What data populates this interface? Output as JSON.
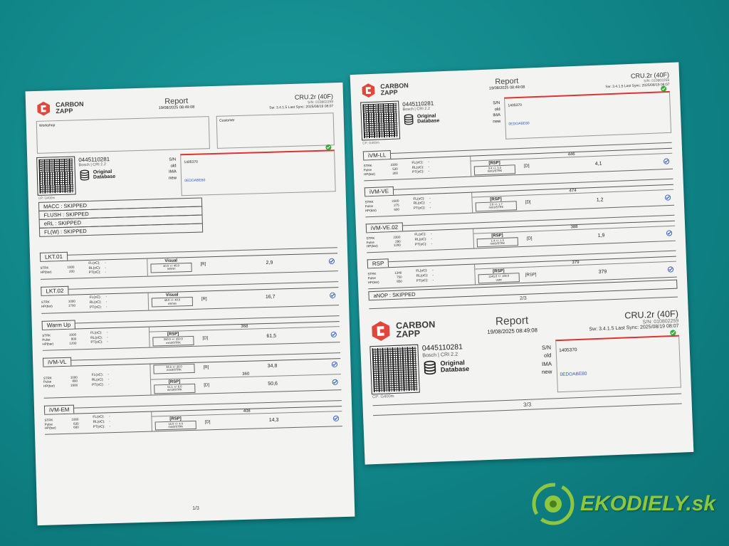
{
  "page1": {
    "header": {
      "brand": [
        "CARBON",
        "ZAPP"
      ],
      "title": "Report",
      "date": "19/08/2025 08:49:08",
      "device": "CRU.2r (40F)",
      "serial": "S/N: 010802259",
      "sync": "Sw: 3.4.1.5 Last Sync: 2025/08/19 08:07"
    },
    "workshop_label": "Workshop",
    "customer_label": "Customer",
    "part": {
      "number": "0445110281",
      "desc": "Bosch | CRI 2.2",
      "database": [
        "Original",
        "Database"
      ],
      "cp": "CP: G400m",
      "info": [
        {
          "label": "S/N",
          "value": "1405370"
        },
        {
          "label": "old"
        },
        {
          "label": "IMA"
        },
        {
          "label": "new",
          "value": "0EDOABE80"
        }
      ]
    },
    "skipped": [
      "MACC : SKIPPED",
      "FLUSH : SKIPPED",
      "eRL : SKIPPED",
      "FL(W) : SKIPPED"
    ],
    "tests": [
      {
        "name": "LKT.01",
        "params": [
          {
            "label": "STRK",
            "value": "1000"
          },
          {
            "label": "HP(bar)",
            "value": "200"
          }
        ],
        "rows": [
          {
            "tag": "Visual",
            "spec": "40.0 +/- 40.0",
            "unit": "ml/min",
            "code": "[R]",
            "result": "2,9"
          }
        ]
      },
      {
        "name": "LKT.02",
        "params": [
          {
            "label": "STRK",
            "value": "1000"
          },
          {
            "label": "HP(bar)",
            "value": "1700"
          }
        ],
        "rows": [
          {
            "tag": "Visual",
            "spec": "40.0 +/- 40.0",
            "unit": "ml/min",
            "code": "[R]",
            "result": "16,7"
          }
        ]
      },
      {
        "name": "Warm Up",
        "params": [
          {
            "label": "STRK",
            "value": "1000"
          },
          {
            "label": "Pulse",
            "value": "800"
          },
          {
            "label": "HP(bar)",
            "value": "1200"
          }
        ],
        "rows": [
          {
            "ref": "368",
            "tag": "[RSP]",
            "spec": "250.0 +/- 250.0",
            "unit": "mm3/STRK",
            "code": "[D]",
            "result": "61,5"
          }
        ]
      },
      {
        "name": "iVM-VL",
        "params": [
          {
            "label": "STRK",
            "value": "1000"
          },
          {
            "label": "Pulse",
            "value": "800"
          },
          {
            "label": "HP(bar)",
            "value": "1600"
          }
        ],
        "rows": [
          {
            "spec": "33.5 +/- 20.0",
            "unit": "mm3/STRK",
            "code": "[R]",
            "result": "34,8"
          },
          {
            "ref": "360",
            "tag": "[RSP]",
            "spec": "51.1 +/- 6.0",
            "unit": "mm3/STRK",
            "code": "[D]",
            "result": "50,6"
          }
        ]
      },
      {
        "name": "iVM-EM",
        "params": [
          {
            "label": "STRK",
            "value": "1000"
          },
          {
            "label": "Pulse",
            "value": "630"
          },
          {
            "label": "HP(bar)",
            "value": "600"
          }
        ],
        "rows": [
          {
            "ref": "408",
            "tag": "[RSP]",
            "spec": "15.0 +/- 4.4",
            "unit": "mm3/STRK",
            "code": "[D]",
            "result": "14,3"
          }
        ]
      }
    ],
    "footer": "1/3"
  },
  "page2": {
    "header": {
      "brand": [
        "CARBON",
        "ZAPP"
      ],
      "title": "Report",
      "date": "19/08/2025 08:49:08",
      "device": "CRU.2r (40F)",
      "serial": "S/N: 010802259",
      "sync": "Sw: 3.4.1.5 Last Sync: 2025/08/19 08:07"
    },
    "part": {
      "number": "0445110281",
      "desc": "Bosch | CRI 2.2",
      "database": [
        "Original",
        "Database"
      ],
      "cp": "CP: G400m",
      "info": [
        {
          "label": "S/N",
          "value": "1405370"
        },
        {
          "label": "old"
        },
        {
          "label": "IMA"
        },
        {
          "label": "new",
          "value": "0EDOABE80"
        }
      ]
    },
    "tests": [
      {
        "name": "iVM-LL",
        "params": [
          {
            "label": "STRK",
            "value": "2300"
          },
          {
            "label": "Pulse",
            "value": "530"
          },
          {
            "label": "HP(bar)",
            "value": "300"
          }
        ],
        "rows": [
          {
            "ref": "446",
            "tag": "[RSP]",
            "spec": "3.4 +/- 3.3",
            "unit": "mm3/STRK",
            "code": "[D]",
            "result": "4,1"
          }
        ]
      },
      {
        "name": "iVM-VE",
        "params": [
          {
            "label": "STRK",
            "value": "2300"
          },
          {
            "label": "Pulse",
            "value": "275"
          },
          {
            "label": "HP(bar)",
            "value": "600"
          }
        ],
        "rows": [
          {
            "ref": "474",
            "tag": "[RSP]",
            "spec": "2.6 +/- 1.7",
            "unit": "mm3/STRK",
            "code": "[D]",
            "result": "1,2"
          }
        ]
      },
      {
        "name": "iVM-VE.02",
        "params": [
          {
            "label": "STRK",
            "value": "2300"
          },
          {
            "label": "Pulse",
            "value": "290"
          },
          {
            "label": "HP(bar)",
            "value": "1200"
          }
        ],
        "rows": [
          {
            "ref": "388",
            "tag": "[RSP]",
            "spec": "1.4 +/- 1.3",
            "unit": "mm3/STRK",
            "code": "[D]",
            "result": "1,9"
          }
        ]
      },
      {
        "name": "RSP",
        "params": [
          {
            "label": "STRK",
            "value": "1340"
          },
          {
            "label": "Pulse",
            "value": "750"
          },
          {
            "label": "HP(bar)",
            "value": "850"
          }
        ],
        "rows": [
          {
            "ref": "379",
            "tag": "[RSP]",
            "spec": "1145.0 +/- 100.0",
            "unit": "usec",
            "code": "[RSP]",
            "result": "379"
          }
        ]
      }
    ],
    "skipped": [
      "aNOP : SKIPPED"
    ],
    "footer": "2/3"
  },
  "page3": {
    "header": {
      "brand": [
        "CARBON",
        "ZAPP"
      ],
      "title": "Report",
      "date": "19/08/2025 08:49:08",
      "device": "CRU.2r (40F)",
      "serial": "S/N: 010802259",
      "sync": "Sw: 3.4.1.5 Last Sync: 2025/08/19 08:07"
    },
    "part": {
      "number": "0445110281",
      "desc": "Bosch | CRI 2.2",
      "database": [
        "Original",
        "Database"
      ],
      "cp": "CP: G400m",
      "info": [
        {
          "label": "S/N",
          "value": "1405370"
        },
        {
          "label": "old"
        },
        {
          "label": "IMA"
        },
        {
          "label": "new",
          "value": "0EDOABE80"
        }
      ]
    },
    "footer": "3/3"
  },
  "cond_labels": [
    "FL(oC):",
    "RL(oC):",
    "PT(oC):"
  ],
  "cond_value": "-",
  "watermark": "EKODIELY.sk"
}
